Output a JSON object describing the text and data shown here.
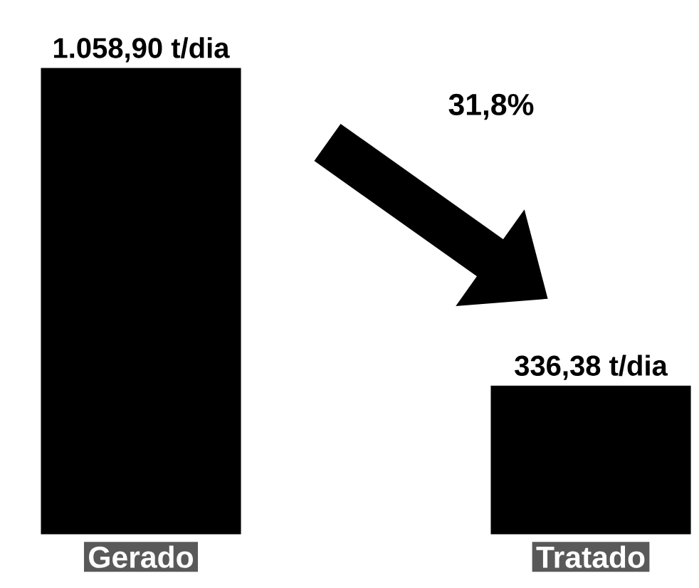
{
  "chart_data": {
    "type": "bar",
    "categories": [
      "Gerado",
      "Tratado"
    ],
    "values": [
      1058.9,
      336.38
    ],
    "color": "#000000",
    "value_labels": [
      "1.058,90 t/dia",
      "336,38 t/dia"
    ],
    "annotations": [
      "31,8%"
    ]
  }
}
